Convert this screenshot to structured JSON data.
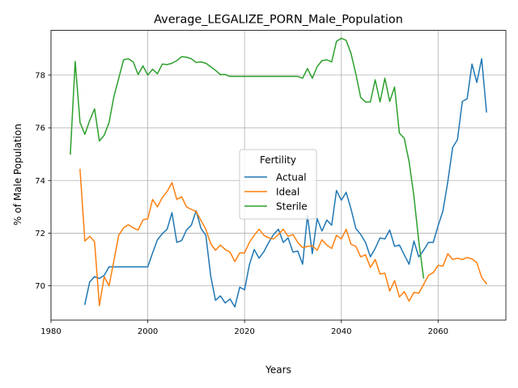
{
  "chart_data": {
    "type": "line",
    "title": "Average_LEGALIZE_PORN_Male_Population",
    "xlabel": "Years",
    "ylabel": "% of Male Population",
    "xlim": [
      1980,
      2074
    ],
    "ylim": [
      68.7,
      79.7
    ],
    "xticks": [
      1980,
      2000,
      2020,
      2040,
      2060
    ],
    "yticks": [
      70,
      72,
      74,
      76,
      78
    ],
    "grid": true,
    "legend": {
      "title": "Fertility",
      "position": "center"
    },
    "series": [
      {
        "name": "Actual",
        "color": "#1f77b4",
        "points": [
          [
            1987,
            69.3
          ],
          [
            1988,
            70.15
          ],
          [
            1989,
            70.35
          ],
          [
            1990,
            70.28
          ],
          [
            1991,
            70.4
          ],
          [
            1992,
            70.72
          ],
          [
            1993,
            70.72
          ],
          [
            1994,
            70.72
          ],
          [
            1995,
            70.72
          ],
          [
            1996,
            70.72
          ],
          [
            1997,
            70.72
          ],
          [
            1998,
            70.72
          ],
          [
            1999,
            70.72
          ],
          [
            2000,
            70.72
          ],
          [
            2001,
            71.25
          ],
          [
            2002,
            71.75
          ],
          [
            2003,
            71.98
          ],
          [
            2004,
            72.15
          ],
          [
            2005,
            72.78
          ],
          [
            2006,
            71.65
          ],
          [
            2007,
            71.72
          ],
          [
            2008,
            72.12
          ],
          [
            2009,
            72.3
          ],
          [
            2010,
            72.85
          ],
          [
            2011,
            72.18
          ],
          [
            2012,
            71.92
          ],
          [
            2013,
            70.38
          ],
          [
            2014,
            69.45
          ],
          [
            2015,
            69.62
          ],
          [
            2016,
            69.35
          ],
          [
            2017,
            69.5
          ],
          [
            2018,
            69.2
          ],
          [
            2019,
            69.95
          ],
          [
            2020,
            69.85
          ],
          [
            2021,
            70.8
          ],
          [
            2022,
            71.38
          ],
          [
            2023,
            71.05
          ],
          [
            2024,
            71.3
          ],
          [
            2025,
            71.65
          ],
          [
            2026,
            71.95
          ],
          [
            2027,
            72.15
          ],
          [
            2028,
            71.65
          ],
          [
            2029,
            71.82
          ],
          [
            2030,
            71.28
          ],
          [
            2031,
            71.32
          ],
          [
            2032,
            70.82
          ],
          [
            2033,
            72.68
          ],
          [
            2034,
            71.22
          ],
          [
            2035,
            72.55
          ],
          [
            2036,
            72.08
          ],
          [
            2037,
            72.5
          ],
          [
            2038,
            72.3
          ],
          [
            2039,
            73.62
          ],
          [
            2040,
            73.25
          ],
          [
            2041,
            73.55
          ],
          [
            2042,
            72.92
          ],
          [
            2043,
            72.18
          ],
          [
            2044,
            71.95
          ],
          [
            2045,
            71.65
          ],
          [
            2046,
            71.1
          ],
          [
            2047,
            71.42
          ],
          [
            2048,
            71.82
          ],
          [
            2049,
            71.78
          ],
          [
            2050,
            72.12
          ],
          [
            2051,
            71.5
          ],
          [
            2052,
            71.55
          ],
          [
            2053,
            71.18
          ],
          [
            2054,
            70.82
          ],
          [
            2055,
            71.7
          ],
          [
            2056,
            71.1
          ],
          [
            2057,
            71.35
          ],
          [
            2058,
            71.65
          ],
          [
            2059,
            71.65
          ],
          [
            2060,
            72.28
          ],
          [
            2061,
            72.85
          ],
          [
            2062,
            73.95
          ],
          [
            2063,
            75.25
          ],
          [
            2064,
            75.55
          ],
          [
            2065,
            77.0
          ],
          [
            2066,
            77.1
          ],
          [
            2067,
            78.42
          ],
          [
            2068,
            77.72
          ],
          [
            2069,
            78.62
          ],
          [
            2070,
            76.6
          ]
        ]
      },
      {
        "name": "Ideal",
        "color": "#ff7f0e",
        "points": [
          [
            1986,
            74.42
          ],
          [
            1987,
            71.7
          ],
          [
            1988,
            71.88
          ],
          [
            1989,
            71.68
          ],
          [
            1990,
            69.25
          ],
          [
            1991,
            70.35
          ],
          [
            1992,
            70.0
          ],
          [
            1993,
            70.95
          ],
          [
            1994,
            71.92
          ],
          [
            1995,
            72.2
          ],
          [
            1996,
            72.32
          ],
          [
            1997,
            72.2
          ],
          [
            1998,
            72.12
          ],
          [
            1999,
            72.5
          ],
          [
            2000,
            72.55
          ],
          [
            2001,
            73.28
          ],
          [
            2002,
            73.0
          ],
          [
            2003,
            73.35
          ],
          [
            2004,
            73.58
          ],
          [
            2005,
            73.92
          ],
          [
            2006,
            73.28
          ],
          [
            2007,
            73.38
          ],
          [
            2008,
            73.0
          ],
          [
            2009,
            72.9
          ],
          [
            2010,
            72.82
          ],
          [
            2011,
            72.48
          ],
          [
            2012,
            72.15
          ],
          [
            2013,
            71.6
          ],
          [
            2014,
            71.35
          ],
          [
            2015,
            71.55
          ],
          [
            2016,
            71.38
          ],
          [
            2017,
            71.28
          ],
          [
            2018,
            70.92
          ],
          [
            2019,
            71.25
          ],
          [
            2020,
            71.25
          ],
          [
            2021,
            71.65
          ],
          [
            2022,
            71.92
          ],
          [
            2023,
            72.15
          ],
          [
            2024,
            71.92
          ],
          [
            2025,
            71.82
          ],
          [
            2026,
            71.78
          ],
          [
            2027,
            71.95
          ],
          [
            2028,
            72.15
          ],
          [
            2029,
            71.88
          ],
          [
            2030,
            71.95
          ],
          [
            2031,
            71.65
          ],
          [
            2032,
            71.45
          ],
          [
            2033,
            71.5
          ],
          [
            2034,
            71.52
          ],
          [
            2035,
            71.35
          ],
          [
            2036,
            71.75
          ],
          [
            2037,
            71.55
          ],
          [
            2038,
            71.42
          ],
          [
            2039,
            71.92
          ],
          [
            2040,
            71.78
          ],
          [
            2041,
            72.15
          ],
          [
            2042,
            71.58
          ],
          [
            2043,
            71.5
          ],
          [
            2044,
            71.1
          ],
          [
            2045,
            71.18
          ],
          [
            2046,
            70.7
          ],
          [
            2047,
            71.0
          ],
          [
            2048,
            70.45
          ],
          [
            2049,
            70.48
          ],
          [
            2050,
            69.8
          ],
          [
            2051,
            70.2
          ],
          [
            2052,
            69.58
          ],
          [
            2053,
            69.78
          ],
          [
            2054,
            69.42
          ],
          [
            2055,
            69.75
          ],
          [
            2056,
            69.72
          ],
          [
            2057,
            70.05
          ],
          [
            2058,
            70.4
          ],
          [
            2059,
            70.5
          ],
          [
            2060,
            70.78
          ],
          [
            2061,
            70.75
          ],
          [
            2062,
            71.22
          ],
          [
            2063,
            71.0
          ],
          [
            2064,
            71.05
          ],
          [
            2065,
            71.0
          ],
          [
            2066,
            71.08
          ],
          [
            2067,
            71.02
          ],
          [
            2068,
            70.88
          ],
          [
            2069,
            70.32
          ],
          [
            2070,
            70.08
          ]
        ]
      },
      {
        "name": "Sterile",
        "color": "#2ca02c",
        "points": [
          [
            1984,
            75.0
          ],
          [
            1985,
            78.52
          ],
          [
            1986,
            76.2
          ],
          [
            1987,
            75.75
          ],
          [
            1988,
            76.28
          ],
          [
            1989,
            76.72
          ],
          [
            1990,
            75.5
          ],
          [
            1991,
            75.72
          ],
          [
            1992,
            76.2
          ],
          [
            1993,
            77.18
          ],
          [
            1994,
            77.88
          ],
          [
            1995,
            78.58
          ],
          [
            1996,
            78.62
          ],
          [
            1997,
            78.5
          ],
          [
            1998,
            78.02
          ],
          [
            1999,
            78.35
          ],
          [
            2000,
            78.0
          ],
          [
            2001,
            78.22
          ],
          [
            2002,
            78.05
          ],
          [
            2003,
            78.42
          ],
          [
            2004,
            78.4
          ],
          [
            2005,
            78.45
          ],
          [
            2006,
            78.55
          ],
          [
            2007,
            78.7
          ],
          [
            2008,
            78.68
          ],
          [
            2009,
            78.62
          ],
          [
            2010,
            78.48
          ],
          [
            2011,
            78.5
          ],
          [
            2012,
            78.45
          ],
          [
            2013,
            78.32
          ],
          [
            2014,
            78.18
          ],
          [
            2015,
            78.02
          ],
          [
            2016,
            78.02
          ],
          [
            2017,
            77.95
          ],
          [
            2018,
            77.95
          ],
          [
            2019,
            77.95
          ],
          [
            2020,
            77.95
          ],
          [
            2021,
            77.95
          ],
          [
            2022,
            77.95
          ],
          [
            2023,
            77.95
          ],
          [
            2024,
            77.95
          ],
          [
            2025,
            77.95
          ],
          [
            2026,
            77.95
          ],
          [
            2027,
            77.95
          ],
          [
            2028,
            77.95
          ],
          [
            2029,
            77.95
          ],
          [
            2030,
            77.95
          ],
          [
            2031,
            77.95
          ],
          [
            2032,
            77.88
          ],
          [
            2033,
            78.25
          ],
          [
            2034,
            77.88
          ],
          [
            2035,
            78.32
          ],
          [
            2036,
            78.55
          ],
          [
            2037,
            78.58
          ],
          [
            2038,
            78.5
          ],
          [
            2039,
            79.28
          ],
          [
            2040,
            79.4
          ],
          [
            2041,
            79.32
          ],
          [
            2042,
            78.82
          ],
          [
            2043,
            78.05
          ],
          [
            2044,
            77.15
          ],
          [
            2045,
            76.98
          ],
          [
            2046,
            76.98
          ],
          [
            2047,
            77.82
          ],
          [
            2048,
            76.98
          ],
          [
            2049,
            77.88
          ],
          [
            2050,
            77.0
          ],
          [
            2051,
            77.55
          ],
          [
            2052,
            75.8
          ],
          [
            2053,
            75.6
          ],
          [
            2054,
            74.72
          ],
          [
            2055,
            73.4
          ],
          [
            2056,
            71.7
          ],
          [
            2057,
            70.3
          ]
        ]
      }
    ]
  }
}
